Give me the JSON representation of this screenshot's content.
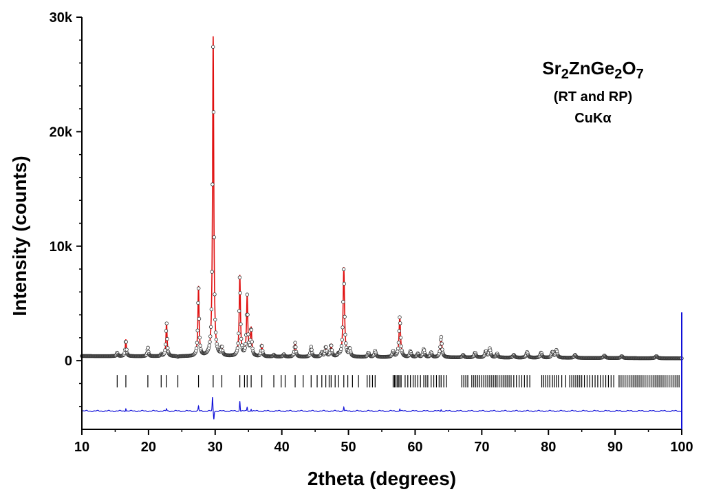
{
  "chart_data": {
    "type": "scatter",
    "xlabel": "2theta (degrees)",
    "ylabel": "Intensity (counts)",
    "xlim": [
      10,
      100
    ],
    "ylim": [
      -6000,
      30000
    ],
    "x_ticks": [
      10,
      20,
      30,
      40,
      50,
      60,
      70,
      80,
      90,
      100
    ],
    "y_ticks": [
      0,
      10000,
      20000,
      30000
    ],
    "y_tick_labels": [
      "0",
      "10k",
      "20k",
      "30k"
    ],
    "grid": false,
    "legend": "none",
    "annotation": {
      "parts": [
        {
          "text": "Sr",
          "sub": false
        },
        {
          "text": "2",
          "sub": true
        },
        {
          "text": "ZnGe",
          "sub": false
        },
        {
          "text": "2",
          "sub": true
        },
        {
          "text": "O",
          "sub": false
        },
        {
          "text": "7",
          "sub": true
        }
      ],
      "line2": "(RT and RP)",
      "line3": "CuKα"
    },
    "background_counts": 400,
    "peaks": [
      {
        "x": 15.3,
        "y": 700
      },
      {
        "x": 16.6,
        "y": 1850
      },
      {
        "x": 19.9,
        "y": 1150
      },
      {
        "x": 21.9,
        "y": 550
      },
      {
        "x": 22.7,
        "y": 3350
      },
      {
        "x": 24.4,
        "y": 300
      },
      {
        "x": 27.5,
        "y": 6450
      },
      {
        "x": 29.7,
        "y": 28300
      },
      {
        "x": 31.0,
        "y": 1100
      },
      {
        "x": 33.7,
        "y": 7400
      },
      {
        "x": 34.8,
        "y": 5600
      },
      {
        "x": 35.4,
        "y": 2750
      },
      {
        "x": 37.0,
        "y": 1350
      },
      {
        "x": 38.8,
        "y": 500
      },
      {
        "x": 40.3,
        "y": 550
      },
      {
        "x": 42.0,
        "y": 1550
      },
      {
        "x": 44.4,
        "y": 1200
      },
      {
        "x": 46.0,
        "y": 700
      },
      {
        "x": 46.6,
        "y": 1200
      },
      {
        "x": 47.4,
        "y": 1350
      },
      {
        "x": 48.5,
        "y": 500
      },
      {
        "x": 49.3,
        "y": 8150
      },
      {
        "x": 50.2,
        "y": 1000
      },
      {
        "x": 53.0,
        "y": 700
      },
      {
        "x": 54.0,
        "y": 850
      },
      {
        "x": 56.7,
        "y": 800
      },
      {
        "x": 57.7,
        "y": 3850
      },
      {
        "x": 59.3,
        "y": 800
      },
      {
        "x": 60.4,
        "y": 600
      },
      {
        "x": 61.3,
        "y": 1000
      },
      {
        "x": 62.4,
        "y": 700
      },
      {
        "x": 63.9,
        "y": 2100
      },
      {
        "x": 67.2,
        "y": 500
      },
      {
        "x": 69.0,
        "y": 700
      },
      {
        "x": 70.6,
        "y": 800
      },
      {
        "x": 71.2,
        "y": 1050
      },
      {
        "x": 72.3,
        "y": 600
      },
      {
        "x": 74.8,
        "y": 500
      },
      {
        "x": 76.8,
        "y": 750
      },
      {
        "x": 78.9,
        "y": 700
      },
      {
        "x": 80.6,
        "y": 750
      },
      {
        "x": 81.2,
        "y": 900
      },
      {
        "x": 84.0,
        "y": 500
      },
      {
        "x": 88.4,
        "y": 450
      },
      {
        "x": 91.0,
        "y": 400
      },
      {
        "x": 96.2,
        "y": 400
      }
    ],
    "reflection_positions": [
      15.3,
      16.6,
      19.9,
      21.9,
      22.7,
      24.4,
      27.5,
      29.7,
      31.0,
      33.7,
      34.4,
      34.8,
      35.4,
      37.0,
      38.8,
      39.9,
      40.5,
      42.0,
      43.2,
      44.4,
      45.3,
      46.0,
      46.6,
      47.1,
      47.4,
      48.0,
      48.5,
      49.3,
      49.9,
      50.6,
      51.5,
      52.8,
      53.2,
      53.6,
      54.0,
      56.7,
      56.9,
      57.1,
      57.3,
      57.5,
      57.7,
      57.9,
      58.5,
      58.9,
      59.3,
      59.7,
      60.0,
      60.4,
      60.8,
      61.3,
      61.6,
      61.9,
      62.4,
      62.8,
      63.2,
      63.6,
      63.9,
      64.3,
      64.7,
      67.0,
      67.3,
      67.6,
      67.9,
      68.5,
      68.8,
      69.1,
      69.4,
      69.7,
      70.0,
      70.3,
      70.6,
      70.9,
      71.2,
      71.5,
      71.8,
      72.1,
      72.3,
      72.6,
      72.9,
      73.2,
      73.5,
      73.8,
      74.1,
      74.4,
      74.8,
      75.2,
      75.6,
      76.0,
      76.4,
      76.8,
      77.2,
      79.0,
      79.3,
      79.6,
      79.9,
      80.2,
      80.6,
      80.9,
      81.2,
      81.5,
      82.0,
      82.6,
      83.2,
      83.5,
      83.8,
      84.1,
      84.4,
      84.7,
      85.0,
      85.4,
      85.8,
      86.2,
      86.6,
      87.0,
      87.4,
      87.8,
      88.2,
      88.6,
      89.0,
      89.4,
      89.8,
      90.6,
      90.9,
      91.2,
      91.5,
      91.8,
      92.1,
      92.4,
      92.7,
      93.0,
      93.3,
      93.6,
      93.9,
      94.2,
      94.5,
      94.8,
      95.1,
      95.4,
      95.7,
      96.0,
      96.3,
      96.6,
      96.9,
      97.2,
      97.5,
      97.8,
      98.1,
      98.4,
      98.7,
      99.0,
      99.3,
      99.6
    ],
    "reflection_marker_level": -1800,
    "difference_baseline": -4400,
    "difference_spikes": [
      {
        "x": 16.6,
        "y": 250
      },
      {
        "x": 22.7,
        "y": 200
      },
      {
        "x": 27.5,
        "y": 400
      },
      {
        "x": 29.6,
        "y": 1200
      },
      {
        "x": 29.8,
        "y": -700
      },
      {
        "x": 33.7,
        "y": 900
      },
      {
        "x": 34.8,
        "y": 350
      },
      {
        "x": 35.4,
        "y": 200
      },
      {
        "x": 49.3,
        "y": 350
      },
      {
        "x": 57.7,
        "y": 200
      },
      {
        "x": 63.9,
        "y": 150
      }
    ],
    "colors": {
      "observed": "#333333",
      "calculated": "#e01010",
      "difference": "#1010d8",
      "reflections": "#000000",
      "axes": "#000000"
    }
  }
}
